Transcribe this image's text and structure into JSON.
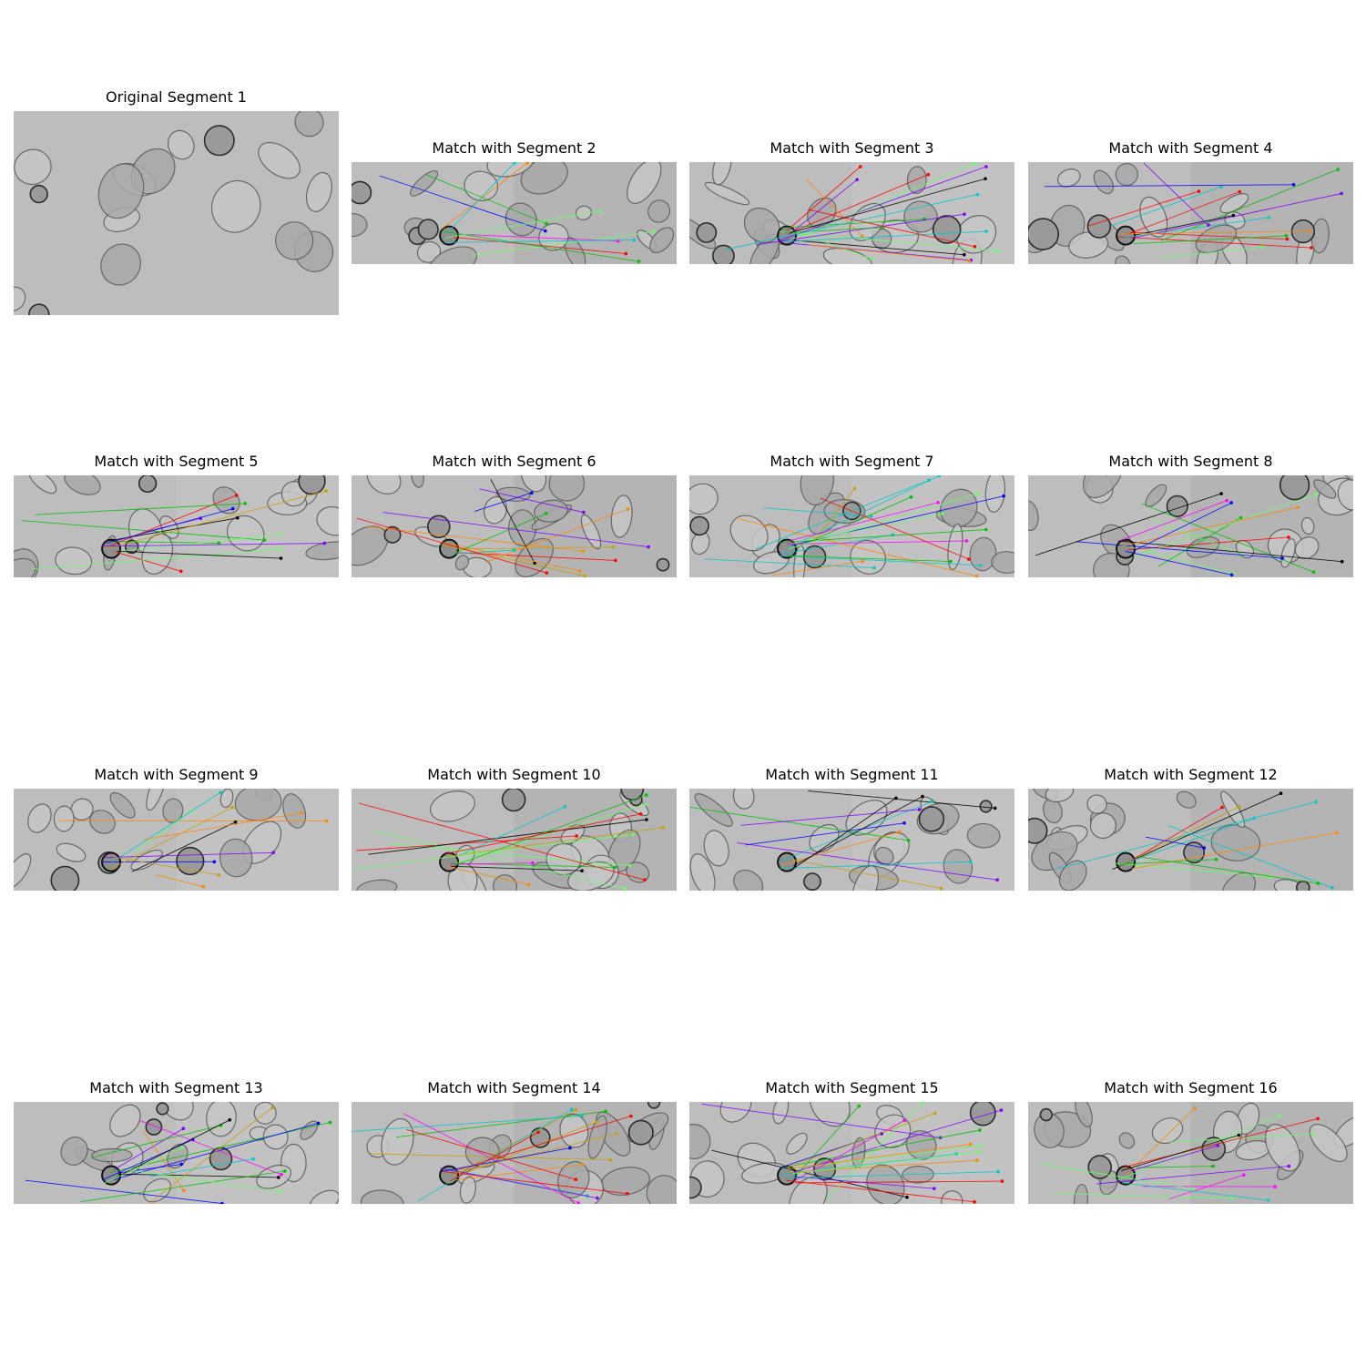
{
  "figure": {
    "panels": [
      {
        "title": "Original Segment 1"
      },
      {
        "title": "Match with Segment 2"
      },
      {
        "title": "Match with Segment 3"
      },
      {
        "title": "Match with Segment 4"
      },
      {
        "title": "Match with Segment 5"
      },
      {
        "title": "Match with Segment 6"
      },
      {
        "title": "Match with Segment 7"
      },
      {
        "title": "Match with Segment 8"
      },
      {
        "title": "Match with Segment 9"
      },
      {
        "title": "Match with Segment 10"
      },
      {
        "title": "Match with Segment 11"
      },
      {
        "title": "Match with Segment 12"
      },
      {
        "title": "Match with Segment 13"
      },
      {
        "title": "Match with Segment 14"
      },
      {
        "title": "Match with Segment 15"
      },
      {
        "title": "Match with Segment 16"
      }
    ],
    "colors": {
      "background": "#ffffff",
      "cell_bg": "#bdbdbd",
      "cell_edge": "#5a5a5a",
      "match_line_palette": [
        "#ff0000",
        "#00c000",
        "#0000ff",
        "#ff00ff",
        "#00c8c8",
        "#c8a000",
        "#ff8800",
        "#8000ff",
        "#000000",
        "#66ff66"
      ]
    }
  }
}
